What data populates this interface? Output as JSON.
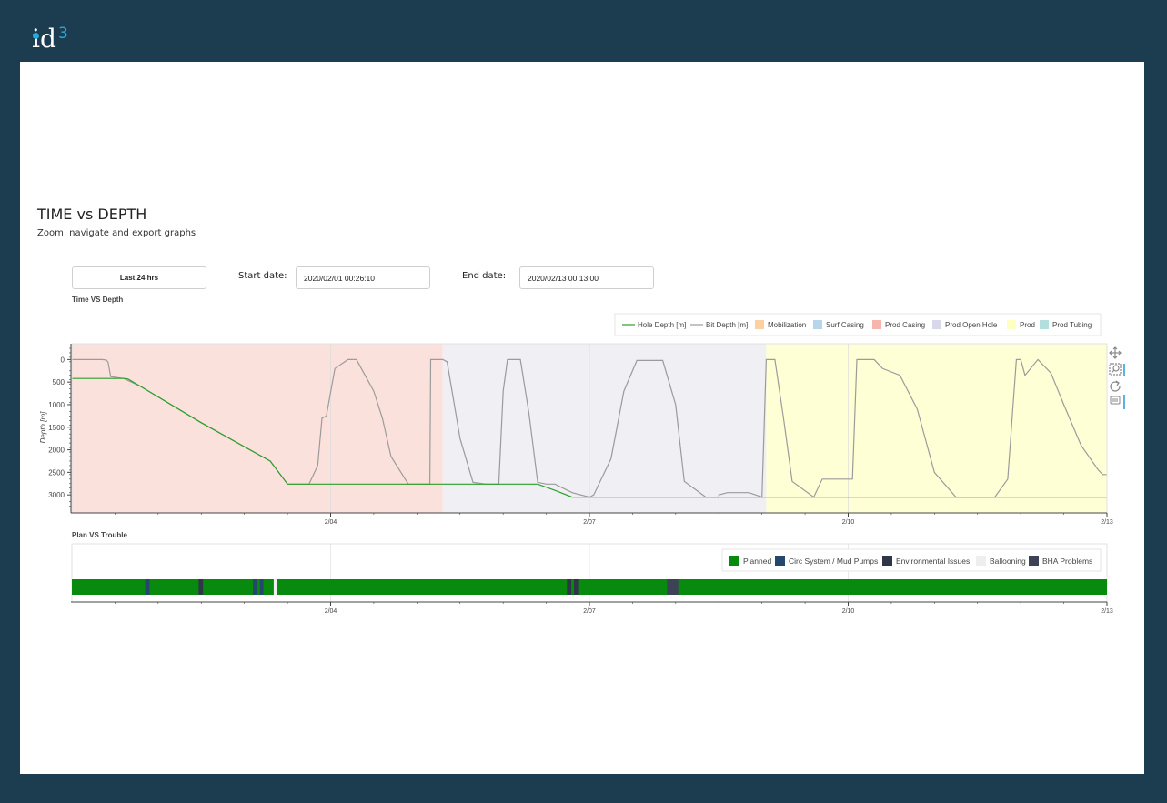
{
  "app": {
    "logo_text": "id",
    "logo_superscript": "3"
  },
  "page": {
    "title": "TIME vs DEPTH",
    "subtitle": "Zoom, navigate and export graphs"
  },
  "controls": {
    "last24_label": "Last 24 hrs",
    "start_label": "Start date:",
    "start_value": "2020/02/01 00:26:10",
    "end_label": "End date:",
    "end_value": "2020/02/13 00:13:00"
  },
  "toolbar": {
    "icons": [
      "pan-icon",
      "box-zoom-icon",
      "reset-icon",
      "hover-icon"
    ]
  },
  "chart_data": [
    {
      "type": "line",
      "title": "Time VS Depth",
      "ylabel": "Depth [m]",
      "x_tick_labels": [
        "2/04",
        "2/07",
        "2/10",
        "2/13"
      ],
      "x_ticks": [
        3.0,
        6.0,
        9.0,
        12.0
      ],
      "xlim": [
        0.0,
        12.0
      ],
      "ylim": [
        3400,
        -350
      ],
      "y_ticks": [
        0,
        500,
        1000,
        1500,
        2000,
        2500,
        3000
      ],
      "legend": {
        "position": "top-right",
        "items": [
          {
            "label": "Hole Depth [m]",
            "kind": "line",
            "color": "#2ca02c"
          },
          {
            "label": "Bit Depth [m]",
            "kind": "line",
            "color": "#9b9b9b"
          },
          {
            "label": "Mobilization",
            "kind": "box",
            "color": "#fdd0a2"
          },
          {
            "label": "Surf Casing",
            "kind": "box",
            "color": "#b8d6ea"
          },
          {
            "label": "Prod Casing",
            "kind": "box",
            "color": "#f7b6ad"
          },
          {
            "label": "Prod Open Hole",
            "kind": "box",
            "color": "#d8d8ea"
          },
          {
            "label": "Prod",
            "kind": "box",
            "color": "#ffffc2"
          },
          {
            "label": "Prod Tubing",
            "kind": "box",
            "color": "#b2dfdb"
          }
        ]
      },
      "phases": [
        {
          "name": "Prod Casing",
          "x0": 0.0,
          "x1": 4.3,
          "color": "#fbe1dc"
        },
        {
          "name": "Prod Open Hole",
          "x0": 4.3,
          "x1": 8.05,
          "color": "#efeff4"
        },
        {
          "name": "Prod",
          "x0": 8.05,
          "x1": 12.0,
          "color": "#ffffd6"
        }
      ],
      "series": [
        {
          "name": "Hole Depth [m]",
          "color": "#2ca02c",
          "x": [
            0.0,
            0.6,
            0.65,
            0.8,
            1.5,
            2.3,
            2.5,
            4.3,
            5.4,
            5.6,
            5.8,
            12.0
          ],
          "y": [
            420,
            420,
            430,
            600,
            1400,
            2250,
            2760,
            2760,
            2760,
            2900,
            3050,
            3050
          ]
        },
        {
          "name": "Bit Depth [m]",
          "color": "#9b9b9b",
          "x": [
            0.0,
            0.35,
            0.4,
            0.42,
            0.45,
            0.6,
            0.8,
            1.5,
            2.3,
            2.5,
            2.75,
            2.85,
            2.9,
            2.95,
            3.05,
            3.2,
            3.3,
            3.5,
            3.6,
            3.7,
            3.9,
            4.0,
            4.1,
            4.15,
            4.16,
            4.25,
            4.3,
            4.35,
            4.5,
            4.65,
            4.8,
            4.95,
            5.0,
            5.05,
            5.2,
            5.3,
            5.4,
            5.5,
            5.6,
            5.8,
            6.0,
            6.05,
            6.25,
            6.4,
            6.55,
            6.7,
            6.85,
            7.0,
            7.1,
            7.35,
            7.5,
            7.5,
            7.6,
            7.85,
            8.0,
            8.05,
            8.15,
            8.25,
            8.35,
            8.6,
            8.7,
            8.9,
            9.05,
            9.1,
            9.3,
            9.4,
            9.6,
            9.8,
            10.0,
            10.25,
            10.45,
            10.7,
            10.85,
            10.95,
            11.0,
            11.05,
            11.2,
            11.35,
            11.5,
            11.7,
            11.9,
            11.95,
            12.0
          ],
          "y": [
            0,
            0,
            10,
            60,
            380,
            420,
            600,
            1400,
            2250,
            2760,
            2760,
            2350,
            1300,
            1250,
            200,
            0,
            0,
            700,
            1300,
            2150,
            2760,
            2760,
            2760,
            2760,
            0,
            0,
            0,
            50,
            1750,
            2720,
            2760,
            2760,
            700,
            0,
            0,
            1200,
            2720,
            2760,
            2760,
            2950,
            3050,
            3000,
            2200,
            700,
            20,
            20,
            20,
            1000,
            2700,
            3050,
            3050,
            3000,
            2950,
            2950,
            3050,
            0,
            0,
            1300,
            2700,
            3050,
            2650,
            2650,
            2650,
            0,
            0,
            200,
            350,
            1100,
            2500,
            3050,
            3050,
            3050,
            2650,
            0,
            0,
            350,
            0,
            300,
            1000,
            1900,
            2450,
            2550,
            2550
          ]
        }
      ]
    },
    {
      "type": "bar",
      "title": "Plan VS Trouble",
      "x_tick_labels": [
        "2/04",
        "2/07",
        "2/10",
        "2/13"
      ],
      "x_ticks": [
        3.0,
        6.0,
        9.0,
        12.0
      ],
      "xlim": [
        0.0,
        12.0
      ],
      "legend": {
        "position": "top-right",
        "items": [
          {
            "label": "Planned",
            "color": "#078a0e"
          },
          {
            "label": "Circ System / Mud Pumps",
            "color": "#24476b"
          },
          {
            "label": "Environmental Issues",
            "color": "#2e3648"
          },
          {
            "label": "Ballooning",
            "color": "#eeeeee"
          },
          {
            "label": "BHA Problems",
            "color": "#3d4257"
          }
        ]
      },
      "segments": [
        {
          "category": "Planned",
          "x0": 0.0,
          "x1": 12.0
        },
        {
          "category": "Circ System / Mud Pumps",
          "x0": 0.85,
          "x1": 0.9
        },
        {
          "category": "Environmental Issues",
          "x0": 1.47,
          "x1": 1.52
        },
        {
          "category": "Circ System / Mud Pumps",
          "x0": 2.1,
          "x1": 2.14
        },
        {
          "category": "Circ System / Mud Pumps",
          "x0": 2.18,
          "x1": 2.22
        },
        {
          "category": "Ballooning",
          "x0": 2.34,
          "x1": 2.38
        },
        {
          "category": "Environmental Issues",
          "x0": 5.74,
          "x1": 5.79
        },
        {
          "category": "Environmental Issues",
          "x0": 5.82,
          "x1": 5.88
        },
        {
          "category": "BHA Problems",
          "x0": 6.9,
          "x1": 7.03
        }
      ]
    }
  ]
}
